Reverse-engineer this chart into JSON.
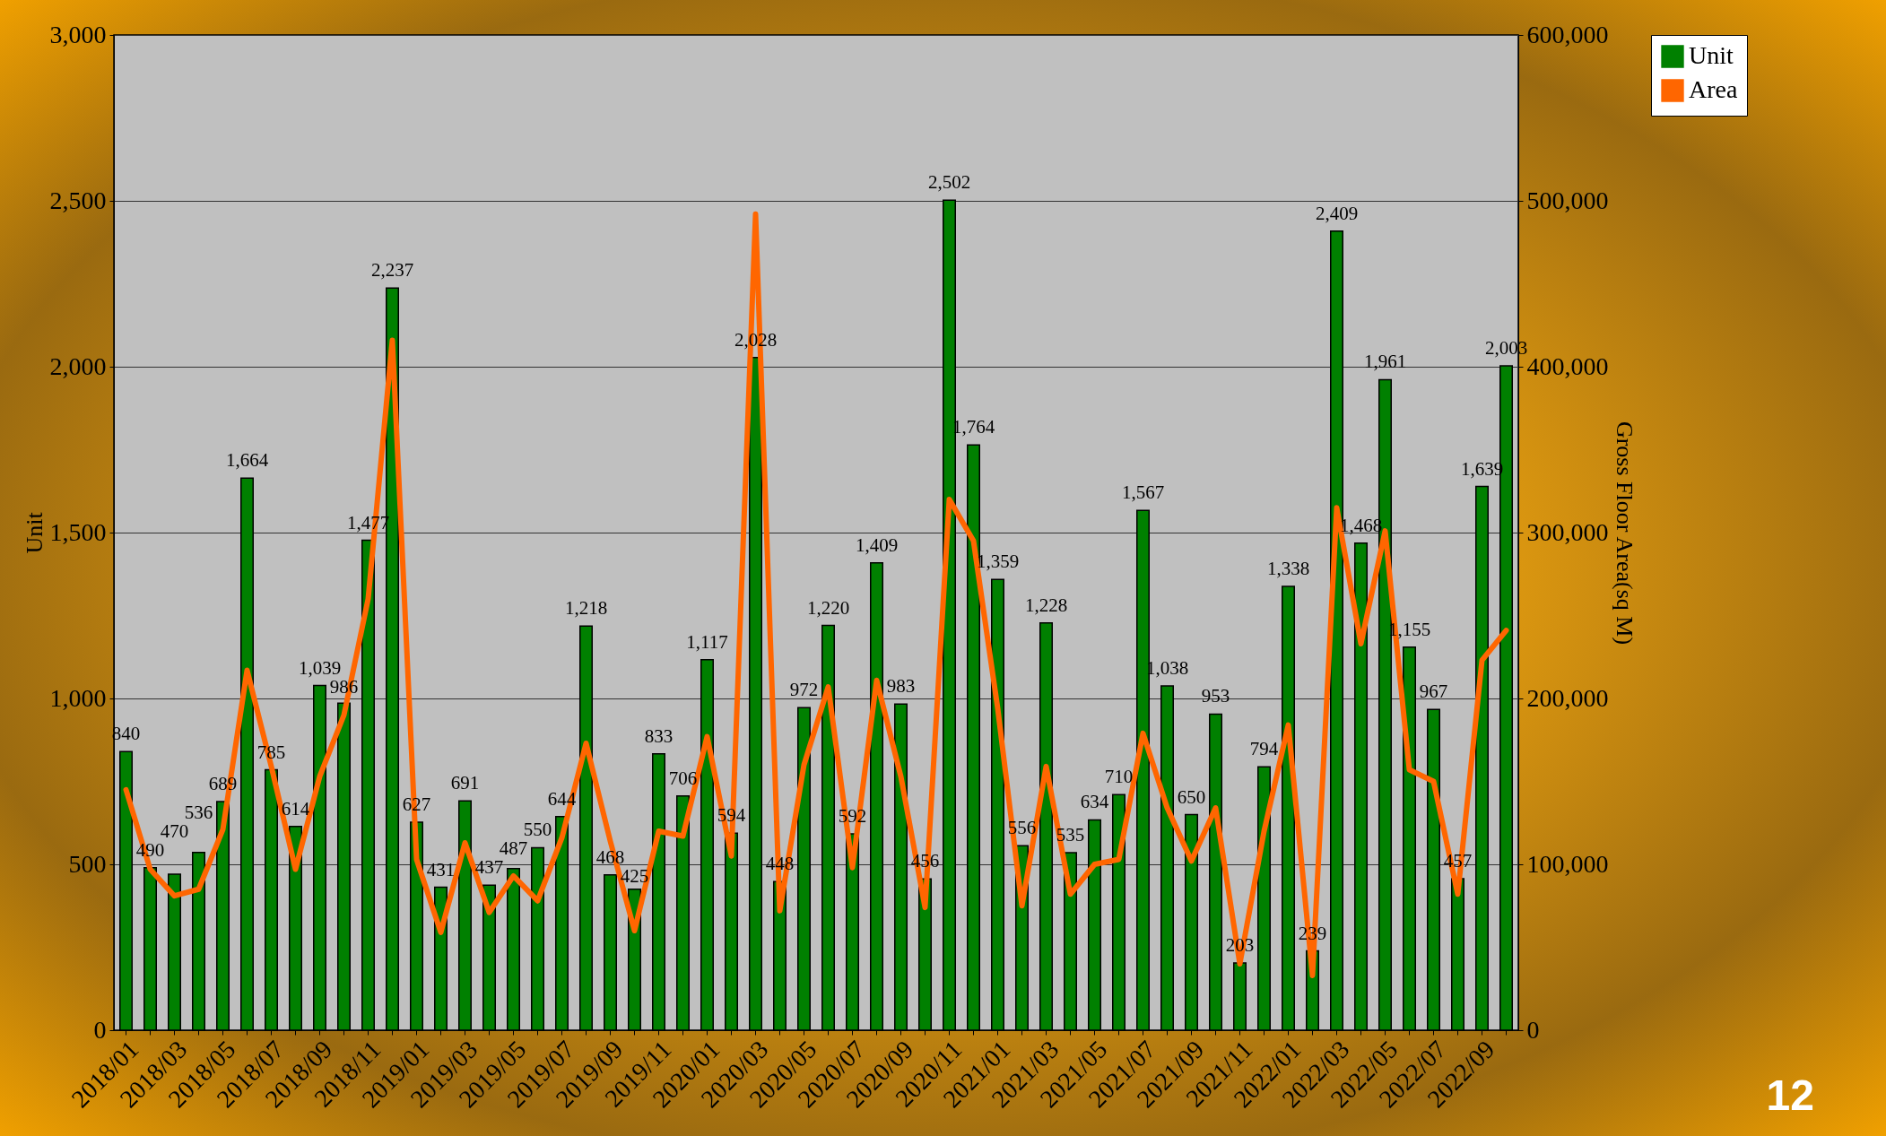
{
  "chart_data": {
    "type": "bar",
    "categories": [
      "2018/01",
      null,
      "2018/03",
      null,
      "2018/05",
      null,
      "2018/07",
      null,
      "2018/09",
      null,
      "2018/11",
      null,
      "2019/01",
      null,
      "2019/03",
      null,
      "2019/05",
      null,
      "2019/07",
      null,
      "2019/09",
      null,
      "2019/11",
      null,
      "2020/01",
      null,
      "2020/03",
      null,
      "2020/05",
      null,
      "2020/07",
      null,
      "2020/09",
      null,
      "2020/11",
      null,
      "2021/01",
      null,
      "2021/03",
      null,
      "2021/05",
      null,
      "2021/07",
      null,
      "2021/09",
      null,
      "2021/11",
      null,
      "2022/01",
      null,
      "2022/03",
      null,
      "2022/05",
      null,
      "2022/07",
      null,
      "2022/09",
      null
    ],
    "series": [
      {
        "name": "Unit",
        "color": "#008000",
        "values": [
          840,
          490,
          470,
          536,
          689,
          1664,
          785,
          614,
          1039,
          986,
          1477,
          2237,
          627,
          431,
          691,
          437,
          487,
          550,
          644,
          1218,
          468,
          425,
          833,
          706,
          1117,
          594,
          2028,
          448,
          972,
          1220,
          592,
          1409,
          983,
          456,
          2502,
          1764,
          1359,
          556,
          1228,
          535,
          634,
          710,
          1567,
          1038,
          650,
          953,
          203,
          794,
          1338,
          239,
          2409,
          1468,
          1961,
          1155,
          967,
          457,
          1639,
          2003
        ],
        "value_labels": [
          "840",
          "490",
          "470",
          "536",
          "689",
          "1,664",
          "785",
          "614",
          "1,039",
          "986",
          "1,477",
          "2,237",
          "627",
          "431",
          "691",
          "437",
          "487",
          "550",
          "644",
          "1,218",
          "468",
          "425",
          "833",
          "706",
          "1,117",
          "594",
          "2,028",
          "448",
          "972",
          "1,220",
          "592",
          "1,409",
          "983",
          "456",
          "2,502",
          "1,764",
          "1,359",
          "556",
          "1,228",
          "535",
          "634",
          "710",
          "1,567",
          "1,038",
          "650",
          "953",
          "203",
          "794",
          "1,338",
          "239",
          "2,409",
          "1,468",
          "1,961",
          "1,155",
          "967",
          "457",
          "1,639",
          "2,003"
        ]
      },
      {
        "name": "Area",
        "type": "line",
        "axis": "y2",
        "color": "#ff6600",
        "values": [
          145000,
          97000,
          81000,
          85000,
          121000,
          217000,
          159000,
          97000,
          153000,
          190000,
          260000,
          416000,
          103000,
          59000,
          113000,
          71000,
          93000,
          78000,
          116000,
          173000,
          114000,
          60000,
          120000,
          117000,
          177000,
          105000,
          492000,
          72000,
          160000,
          207000,
          98000,
          211000,
          153000,
          74000,
          320000,
          295000,
          194000,
          75000,
          159000,
          82000,
          100000,
          103000,
          179000,
          134000,
          102000,
          134000,
          40000,
          120000,
          184000,
          33000,
          315000,
          233000,
          301000,
          157000,
          150000,
          82000,
          223000,
          241000
        ]
      }
    ],
    "ylabel": "Unit",
    "y2label": "Gross Floor Area(sq M)",
    "ylim": [
      0,
      3000
    ],
    "yticks": [
      0,
      {
        "value": 500,
        "label": "500"
      },
      {
        "value": 1000,
        "label": "1,000"
      },
      {
        "value": 1500,
        "label": "1,500"
      },
      {
        "value": 2000,
        "label": "2,000"
      },
      {
        "value": 2500,
        "label": "2,500"
      },
      {
        "value": 3000,
        "label": "3,000"
      }
    ],
    "y2lim": [
      0,
      600000
    ],
    "y2ticks": [
      0,
      {
        "value": 100000,
        "label": "100,000"
      },
      {
        "value": 200000,
        "label": "200,000"
      },
      {
        "value": 300000,
        "label": "300,000"
      },
      {
        "value": 400000,
        "label": "400,000"
      },
      {
        "value": 500000,
        "label": "500,000"
      },
      {
        "value": 600000,
        "label": "600,000"
      }
    ],
    "grid": "y",
    "legend": "right",
    "annotations": [
      "12"
    ]
  }
}
